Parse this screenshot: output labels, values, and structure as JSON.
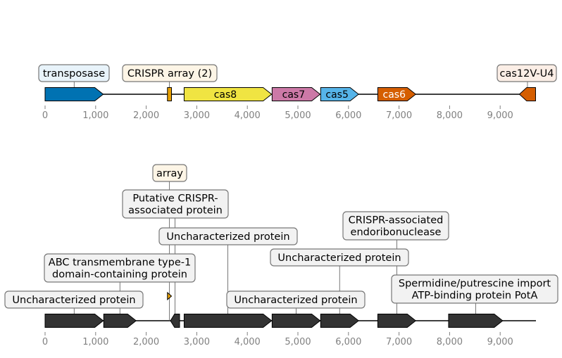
{
  "tracks": [
    {
      "id": "top",
      "axis": {
        "min": 0,
        "max": 9700,
        "ticks": [
          0,
          1000,
          2000,
          3000,
          4000,
          5000,
          6000,
          7000,
          8000,
          9000
        ],
        "tick_labels": [
          "0",
          "1,000",
          "2,000",
          "3,000",
          "4,000",
          "5,000",
          "6,000",
          "7,000",
          "8,000",
          "9,000"
        ]
      },
      "features": [
        {
          "start": 0,
          "end": 1150,
          "strand": "+",
          "color": "#0072b2",
          "label": "",
          "text_color": "#000000"
        },
        {
          "start": 2420,
          "end": 2500,
          "strand": "none",
          "color": "#e69f00",
          "label": "",
          "text_color": "#000000"
        },
        {
          "start": 2750,
          "end": 4480,
          "strand": "+",
          "color": "#f0e442",
          "label": "cas8",
          "text_color": "#000000"
        },
        {
          "start": 4490,
          "end": 5440,
          "strand": "+",
          "color": "#cc79a7",
          "label": "cas7",
          "text_color": "#000000"
        },
        {
          "start": 5450,
          "end": 6200,
          "strand": "+",
          "color": "#56b4e9",
          "label": "cas5",
          "text_color": "#000000"
        },
        {
          "start": 6580,
          "end": 7330,
          "strand": "+",
          "color": "#d55e00",
          "label": "cas6",
          "text_color": "#ffffff"
        },
        {
          "start": 9380,
          "end": 9700,
          "strand": "-",
          "color": "#d55e00",
          "label": "",
          "text_color": "#000000"
        }
      ],
      "callouts": [
        {
          "text": "transposase",
          "pos": 575,
          "bg": "#e8f3fa"
        },
        {
          "text": "CRISPR array (2)",
          "pos": 2460,
          "bg": "#fdf5e6"
        },
        {
          "text": "cas12V-U4",
          "pos": 9540,
          "bg": "#fbeee6"
        }
      ]
    },
    {
      "id": "bottom",
      "axis": {
        "min": 0,
        "max": 9700,
        "ticks": [
          0,
          1000,
          2000,
          3000,
          4000,
          5000,
          6000,
          7000,
          8000,
          9000
        ],
        "tick_labels": [
          "0",
          "1,000",
          "2,000",
          "3,000",
          "4,000",
          "5,000",
          "6,000",
          "7,000",
          "8,000",
          "9,000"
        ]
      },
      "features": [
        {
          "start": 0,
          "end": 1150,
          "strand": "+",
          "color": "#333333"
        },
        {
          "start": 1160,
          "end": 1800,
          "strand": "+",
          "color": "#333333"
        },
        {
          "start": 2420,
          "end": 2500,
          "strand": "+",
          "color": "#e69f00"
        },
        {
          "start": 2480,
          "end": 2660,
          "strand": "-",
          "color": "#333333"
        },
        {
          "start": 2750,
          "end": 4480,
          "strand": "+",
          "color": "#333333"
        },
        {
          "start": 4490,
          "end": 5440,
          "strand": "+",
          "color": "#333333"
        },
        {
          "start": 5450,
          "end": 6200,
          "strand": "+",
          "color": "#333333"
        },
        {
          "start": 6580,
          "end": 7330,
          "strand": "+",
          "color": "#333333"
        },
        {
          "start": 7980,
          "end": 9050,
          "strand": "+",
          "color": "#333333"
        }
      ],
      "callouts": [
        {
          "text": [
            "Uncharacterized protein"
          ],
          "pos": 575,
          "bg": "#f2f2f2"
        },
        {
          "text": [
            "ABC transmembrane type-1",
            "domain-containing protein"
          ],
          "pos": 1480,
          "bg": "#f2f2f2"
        },
        {
          "text": [
            "array"
          ],
          "pos": 2460,
          "bg": "#fdf5e6"
        },
        {
          "text": [
            "Putative CRISPR-",
            "associated protein"
          ],
          "pos": 2570,
          "bg": "#f2f2f2"
        },
        {
          "text": [
            "Uncharacterized protein"
          ],
          "pos": 3615,
          "bg": "#f2f2f2"
        },
        {
          "text": [
            "Uncharacterized protein"
          ],
          "pos": 4965,
          "bg": "#f2f2f2"
        },
        {
          "text": [
            "Uncharacterized protein"
          ],
          "pos": 5825,
          "bg": "#f2f2f2"
        },
        {
          "text": [
            "CRISPR-associated",
            "endoribonuclease"
          ],
          "pos": 6955,
          "bg": "#f2f2f2"
        },
        {
          "text": [
            "Spermidine/putrescine import",
            "ATP-binding protein PotA"
          ],
          "pos": 8515,
          "bg": "#f2f2f2"
        }
      ]
    }
  ]
}
